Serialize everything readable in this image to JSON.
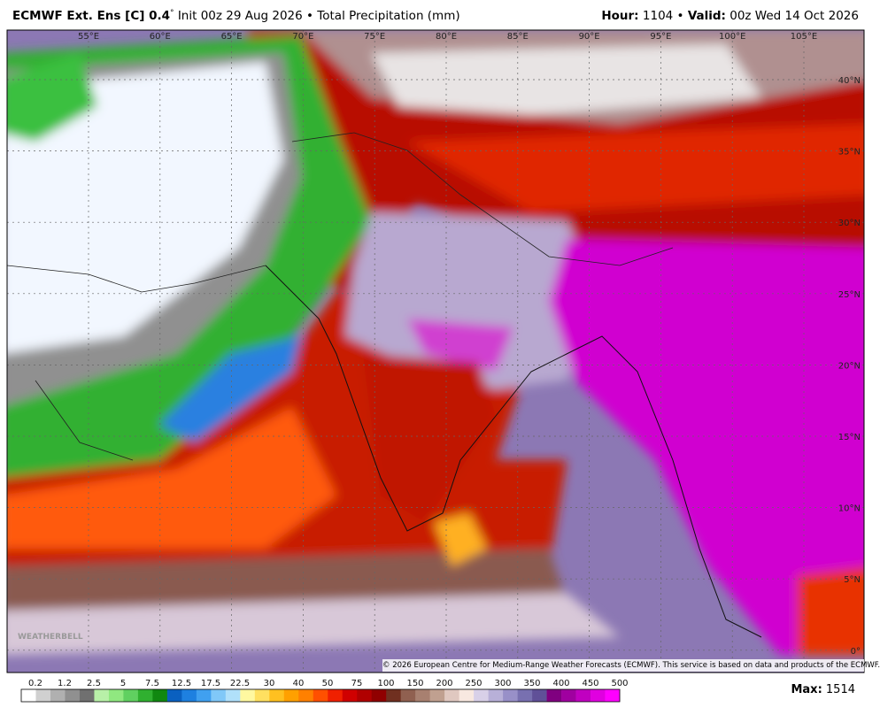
{
  "header": {
    "model": "ECMWF Ext.  Ens [C] 0.4",
    "degree": "°",
    "init": "Init 00z 29 Aug 2026",
    "bullet": "•",
    "field": "Total Precipitation (mm)",
    "hour_label": "Hour:",
    "hour": "1104",
    "valid_label": "Valid:",
    "valid": "00z Wed 14 Oct 2026"
  },
  "lon_labels": [
    "55°E",
    "60°E",
    "65°E",
    "70°E",
    "75°E",
    "80°E",
    "85°E",
    "90°E",
    "95°E",
    "100°E",
    "105°E"
  ],
  "lat_labels": [
    "40°N",
    "35°N",
    "30°N",
    "25°N",
    "20°N",
    "15°N",
    "10°N",
    "5°N",
    "0°"
  ],
  "colorbar": {
    "labels": [
      0.2,
      1.2,
      2.5,
      5,
      7.5,
      12.5,
      17.5,
      22.5,
      30,
      40,
      50,
      75,
      100,
      150,
      200,
      250,
      300,
      350,
      400,
      450,
      500
    ],
    "colors": [
      "#ffffff",
      "#d0d0d0",
      "#b0b0b0",
      "#909090",
      "#707070",
      "#b8f0a8",
      "#90e880",
      "#60d060",
      "#30b030",
      "#108810",
      "#0a60c0",
      "#1e80e0",
      "#40a0f0",
      "#80c8f8",
      "#b0e0fa",
      "#fff8a0",
      "#ffe060",
      "#ffc020",
      "#ffa000",
      "#ff8000",
      "#ff5000",
      "#f02000",
      "#d00000",
      "#b00000",
      "#900000",
      "#703020",
      "#906050",
      "#a88070",
      "#c0a090",
      "#e0c8c0",
      "#f8e8e0",
      "#d8d0e8",
      "#b8b0d8",
      "#9890c8",
      "#7870b0",
      "#605098",
      "#800080",
      "#a000a0",
      "#c000c0",
      "#e000e0",
      "#ff00ff"
    ]
  },
  "max": {
    "label": "Max:",
    "value": "1514"
  },
  "copyright": "© 2026 European Centre for Medium-Range Weather Forecasts (ECMWF). This service is based on data and products of the ECMWF.",
  "watermark": "WEATHERBELL"
}
